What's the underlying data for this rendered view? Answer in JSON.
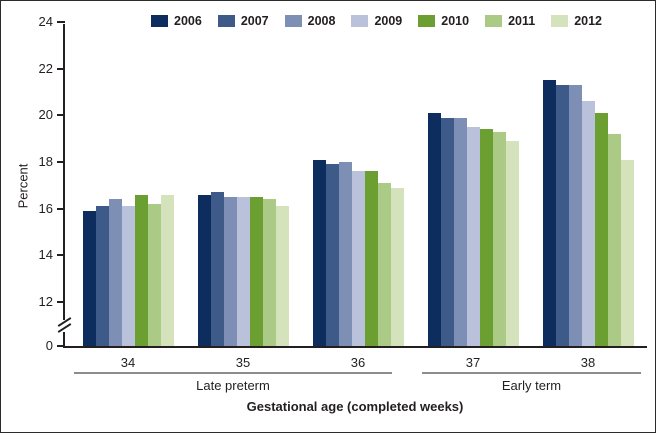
{
  "chart_data": {
    "type": "bar",
    "title": "",
    "ylabel": "Percent",
    "xlabel": "Gestational age (completed weeks)",
    "categories": [
      "34",
      "35",
      "36",
      "37",
      "38"
    ],
    "category_brackets": [
      {
        "label": "Late preterm",
        "span": [
          "34",
          "36"
        ]
      },
      {
        "label": "Early term",
        "span": [
          "37",
          "38"
        ]
      }
    ],
    "series": [
      {
        "name": "2006",
        "color": "#0d2d5e",
        "values": [
          15.9,
          16.6,
          18.1,
          20.1,
          21.5
        ]
      },
      {
        "name": "2007",
        "color": "#3d5a88",
        "values": [
          16.1,
          16.7,
          17.9,
          19.9,
          21.3
        ]
      },
      {
        "name": "2008",
        "color": "#7d8fb5",
        "values": [
          16.4,
          16.5,
          18.0,
          19.9,
          21.3
        ]
      },
      {
        "name": "2009",
        "color": "#b9c2da",
        "values": [
          16.1,
          16.5,
          17.6,
          19.5,
          20.6
        ]
      },
      {
        "name": "2010",
        "color": "#6b9f32",
        "values": [
          16.6,
          16.5,
          17.6,
          19.4,
          20.1
        ]
      },
      {
        "name": "2011",
        "color": "#abca85",
        "values": [
          16.2,
          16.4,
          17.1,
          19.3,
          19.2
        ]
      },
      {
        "name": "2012",
        "color": "#d5e3bd",
        "values": [
          16.6,
          16.1,
          16.9,
          18.9,
          18.1
        ]
      }
    ],
    "y_axis": {
      "ticks": [
        0,
        12,
        14,
        16,
        18,
        20,
        22,
        24
      ],
      "ylim": [
        0,
        24
      ],
      "axis_break_between": [
        0,
        12
      ],
      "grid": false
    },
    "legend_position": "top"
  }
}
